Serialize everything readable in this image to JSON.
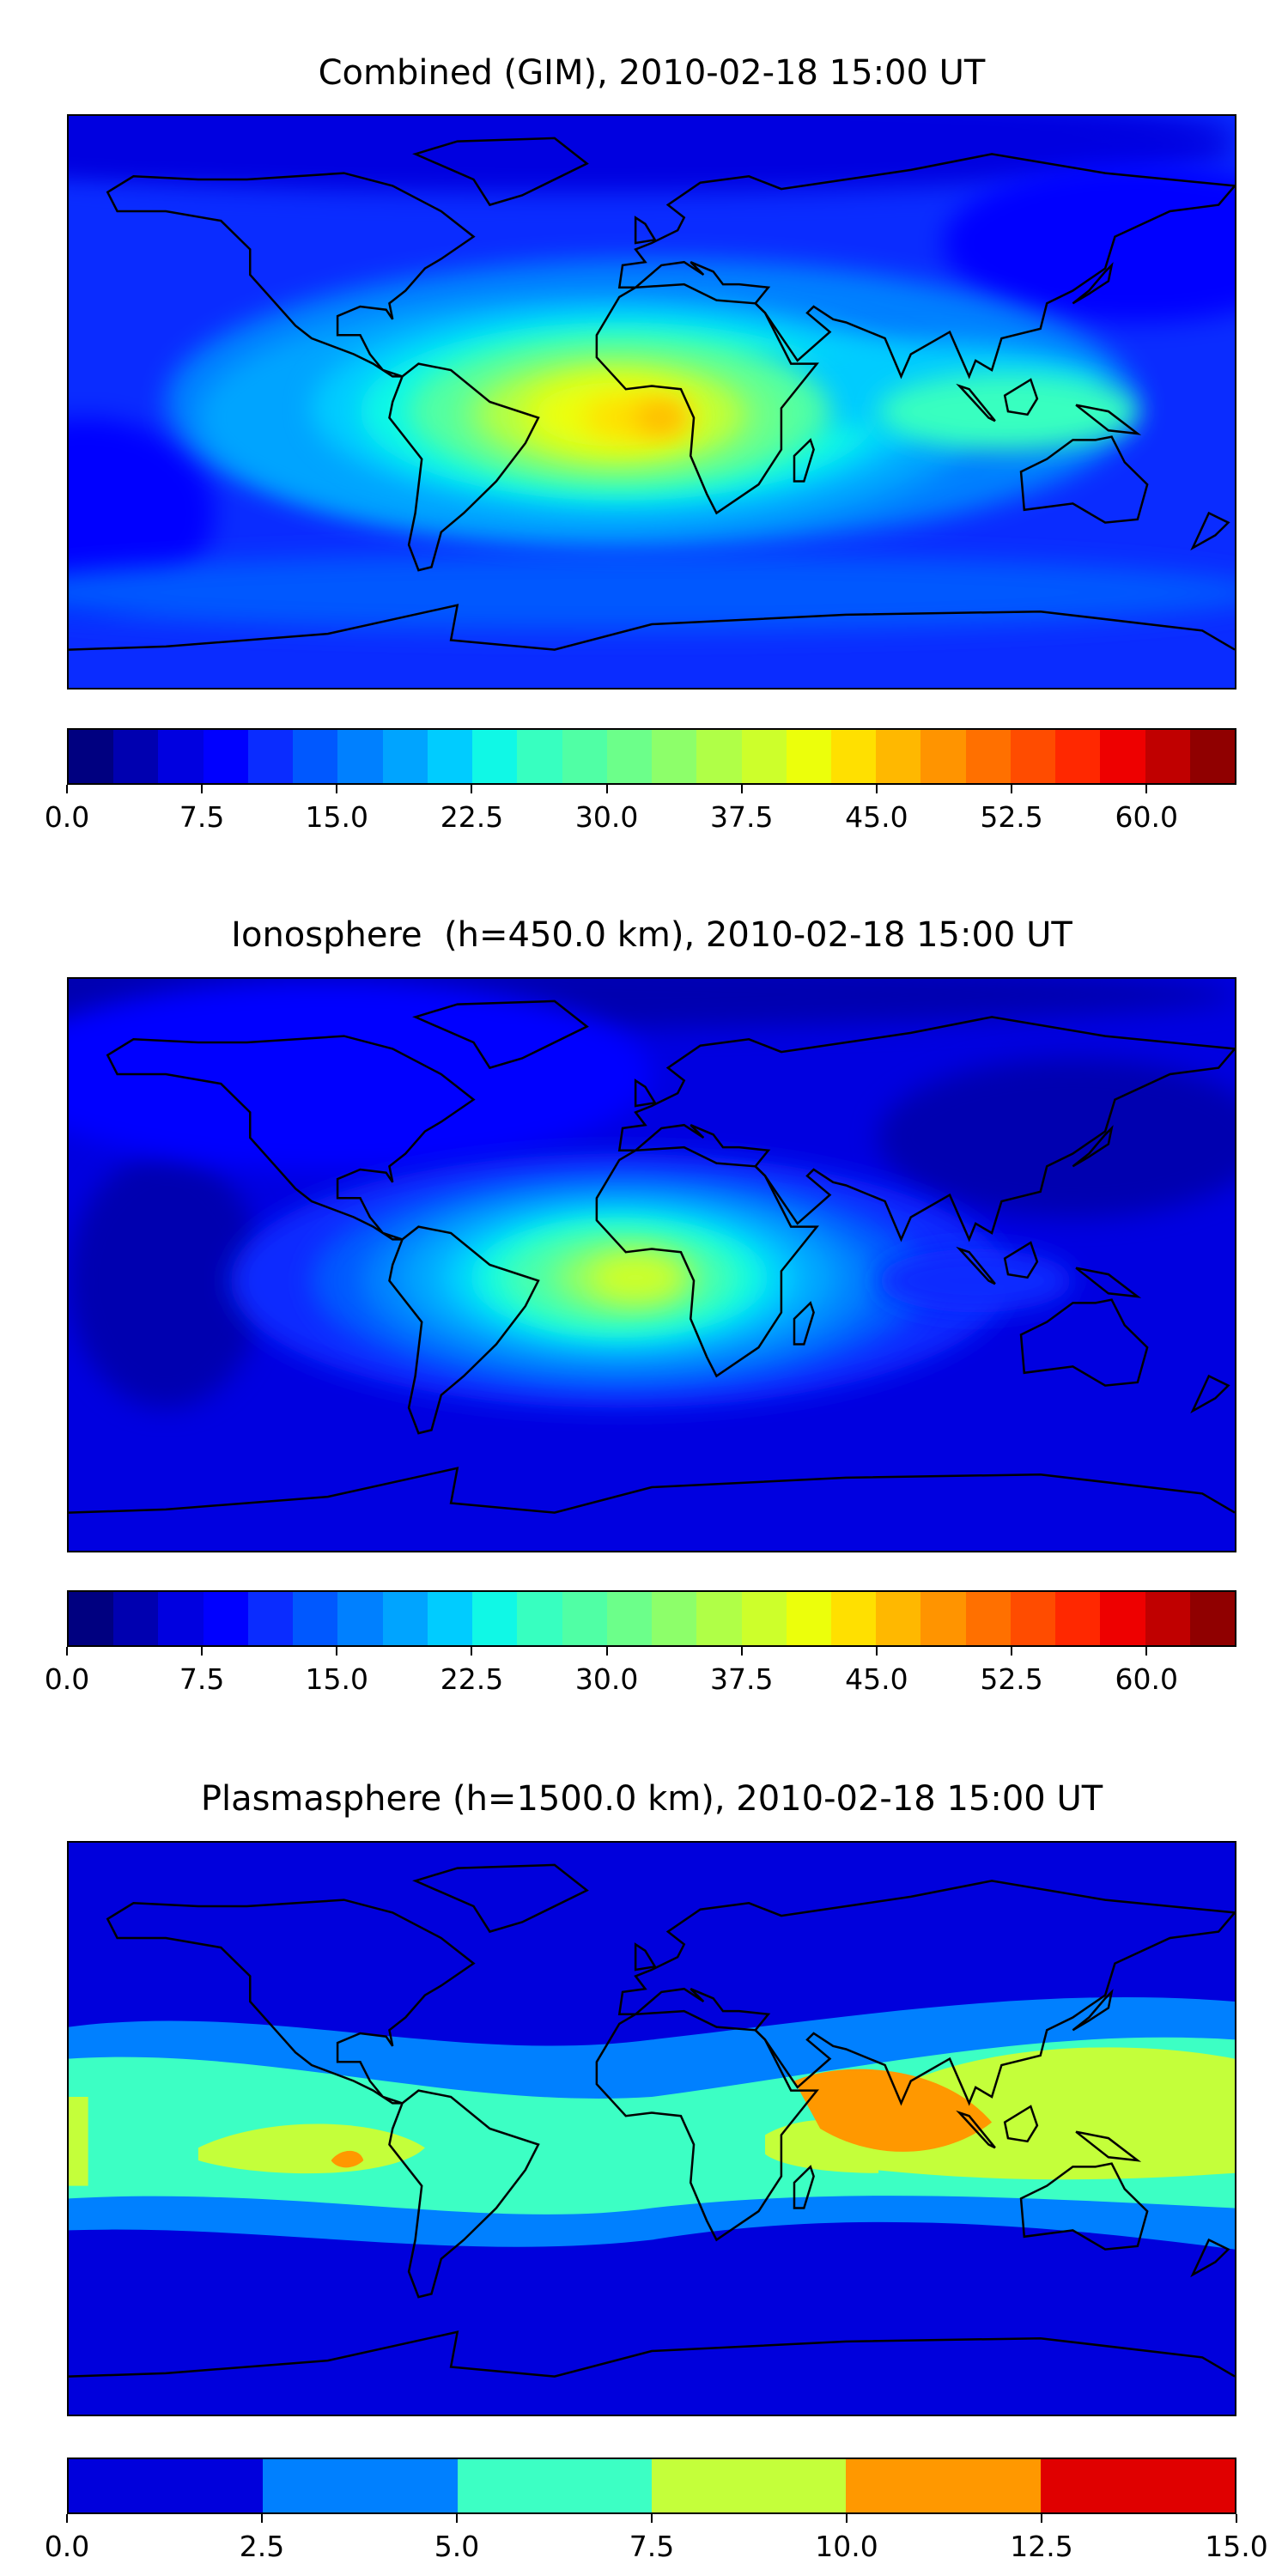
{
  "chart_data": [
    {
      "type": "heatmap",
      "title": "Combined (GIM), 2010-02-18 15:00 UT",
      "projection": "equirectangular, global",
      "colorbar": {
        "min": 0,
        "max": 65,
        "step": 2.5,
        "ticks": [
          "0.0",
          "7.5",
          "15.0",
          "22.5",
          "30.0",
          "37.5",
          "45.0",
          "52.5",
          "60.0"
        ],
        "colors": [
          "#000080",
          "#0000b0",
          "#0000e0",
          "#0000ff",
          "#0a2cff",
          "#0058ff",
          "#0080ff",
          "#00a4ff",
          "#00ccff",
          "#10f8e6",
          "#37ffc0",
          "#50ffa5",
          "#6cff8a",
          "#8dff6a",
          "#b0ff47",
          "#cdff2b",
          "#ecff0b",
          "#ffe000",
          "#ffb800",
          "#ff9400",
          "#ff7000",
          "#ff4c00",
          "#ff2800",
          "#ee0000",
          "#c00000",
          "#900000"
        ]
      },
      "field": {
        "background_level": 10,
        "peak_level": 45,
        "peak_lon": -10,
        "peak_lat": -5
      }
    },
    {
      "type": "heatmap",
      "title": "Ionosphere  (h=450.0 km), 2010-02-18 15:00 UT",
      "projection": "equirectangular, global",
      "colorbar": {
        "min": 0,
        "max": 65,
        "step": 2.5,
        "ticks": [
          "0.0",
          "7.5",
          "15.0",
          "22.5",
          "30.0",
          "37.5",
          "45.0",
          "52.5",
          "60.0"
        ],
        "colors": [
          "#000080",
          "#0000b0",
          "#0000e0",
          "#0000ff",
          "#0a2cff",
          "#0058ff",
          "#0080ff",
          "#00a4ff",
          "#00ccff",
          "#10f8e6",
          "#37ffc0",
          "#50ffa5",
          "#6cff8a",
          "#8dff6a",
          "#b0ff47",
          "#cdff2b",
          "#ecff0b",
          "#ffe000",
          "#ffb800",
          "#ff9400",
          "#ff7000",
          "#ff4c00",
          "#ff2800",
          "#ee0000",
          "#c00000",
          "#900000"
        ]
      },
      "field": {
        "background_level": 5,
        "peak_level": 40,
        "peak_lon": -10,
        "peak_lat": -5
      }
    },
    {
      "type": "heatmap",
      "title": "Plasmasphere (h=1500.0 km), 2010-02-18 15:00 UT",
      "projection": "equirectangular, global",
      "colorbar": {
        "min": 0,
        "max": 15,
        "step": 2.5,
        "ticks": [
          "0.0",
          "2.5",
          "5.0",
          "7.5",
          "10.0",
          "12.5",
          "15.0"
        ],
        "colors": [
          "#0000dc",
          "#0080ff",
          "#3cffc4",
          "#c4ff3a",
          "#ff9800",
          "#e00000"
        ]
      },
      "field": {
        "background_level": 1.25,
        "peak_level": 11.25,
        "peak_lon": 70,
        "peak_lat": 12
      }
    }
  ]
}
